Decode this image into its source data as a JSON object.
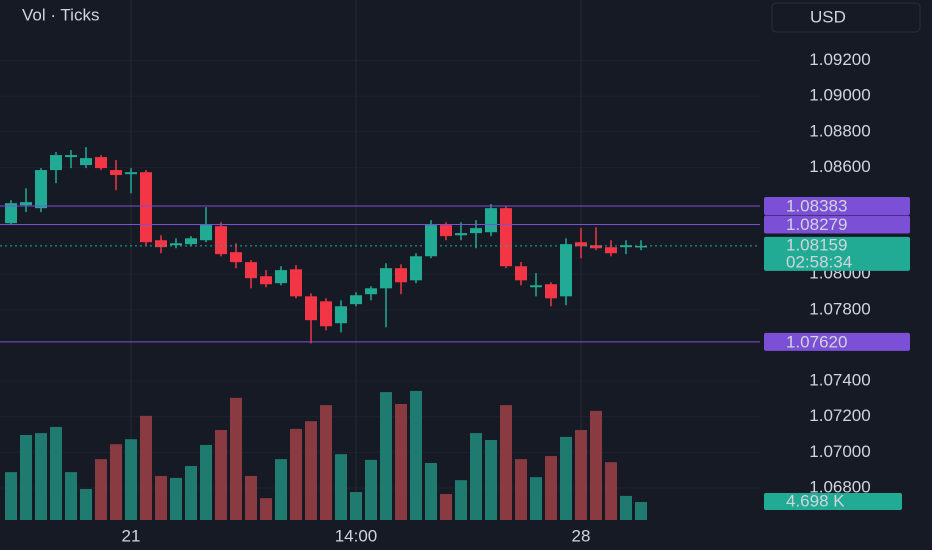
{
  "chart_data": {
    "type": "candlestick",
    "title": "Vol · Ticks",
    "currency": "USD",
    "categories": [
      null,
      null,
      null,
      null,
      null,
      null,
      null,
      null,
      "21",
      null,
      null,
      null,
      null,
      null,
      null,
      null,
      null,
      null,
      null,
      null,
      null,
      null,
      null,
      "14:00",
      null,
      null,
      null,
      null,
      null,
      null,
      null,
      null,
      null,
      null,
      null,
      null,
      null,
      null,
      "28",
      null,
      null,
      null,
      null
    ],
    "ohlc": {
      "open": [
        1.08287,
        1.08388,
        1.08371,
        1.08585,
        1.08658,
        1.08613,
        1.08658,
        1.08585,
        1.08562,
        1.08573,
        1.08191,
        1.08163,
        1.08169,
        1.08191,
        1.0827,
        1.08124,
        1.08068,
        1.07989,
        1.0795,
        1.08028,
        1.07876,
        1.07848,
        1.07725,
        1.07832,
        1.07888,
        1.07921,
        1.08034,
        1.07966,
        1.08101,
        1.08276,
        1.08219,
        1.08231,
        1.08236,
        1.08371,
        1.08045,
        1.07927,
        1.07944,
        1.07876,
        1.0818,
        1.08163,
        1.08152,
        1.08152,
        1.08152
      ],
      "high": [
        1.08416,
        1.08483,
        1.08596,
        1.08686,
        1.08697,
        1.08714,
        1.08669,
        1.08641,
        1.08596,
        1.08585,
        1.08219,
        1.08202,
        1.08214,
        1.08377,
        1.08292,
        1.08174,
        1.08079,
        1.08023,
        1.08045,
        1.08051,
        1.07893,
        1.07865,
        1.07854,
        1.07899,
        1.07933,
        1.08062,
        1.08056,
        1.08118,
        1.08304,
        1.08292,
        1.08292,
        1.08304,
        1.08394,
        1.08382,
        1.08068,
        1.08006,
        1.07955,
        1.08202,
        1.08259,
        1.08264,
        1.08191,
        1.08191,
        1.08191
      ],
      "low": [
        1.08276,
        1.08349,
        1.08349,
        1.08512,
        1.08596,
        1.08596,
        1.08585,
        1.08472,
        1.08455,
        1.08163,
        1.08118,
        1.08146,
        1.08157,
        1.0818,
        1.08101,
        1.08034,
        1.07921,
        1.07927,
        1.07938,
        1.07865,
        1.07612,
        1.07685,
        1.07674,
        1.0782,
        1.07854,
        1.07702,
        1.07888,
        1.0795,
        1.0809,
        1.08191,
        1.08191,
        1.08146,
        1.08214,
        1.08034,
        1.07938,
        1.07876,
        1.0782,
        1.07826,
        1.0809,
        1.08135,
        1.08101,
        1.08113,
        1.08135
      ],
      "close": [
        1.08399,
        1.08405,
        1.08585,
        1.08669,
        1.08669,
        1.08652,
        1.08596,
        1.08557,
        1.08573,
        1.0818,
        1.08152,
        1.08174,
        1.08202,
        1.08276,
        1.08113,
        1.08068,
        1.07978,
        1.07944,
        1.08023,
        1.07876,
        1.07742,
        1.07708,
        1.0782,
        1.07882,
        1.07921,
        1.08034,
        1.07955,
        1.08101,
        1.08276,
        1.08214,
        1.08231,
        1.08259,
        1.08371,
        1.08045,
        1.07966,
        1.07938,
        1.07865,
        1.08169,
        1.08157,
        1.08146,
        1.08118,
        1.08163,
        1.08159
      ]
    },
    "up_color": "#22ab94",
    "down_color": "#f23645",
    "ylim": [
      1.0662,
      1.0954
    ],
    "yticks": [
      {
        "value": 1.092,
        "label": "1.09200"
      },
      {
        "value": 1.09,
        "label": "1.09000"
      },
      {
        "value": 1.088,
        "label": "1.08800"
      },
      {
        "value": 1.086,
        "label": "1.08600"
      },
      {
        "value": 1.08,
        "label": "1.08000"
      },
      {
        "value": 1.078,
        "label": "1.07800"
      },
      {
        "value": 1.074,
        "label": "1.07400"
      },
      {
        "value": 1.072,
        "label": "1.07200"
      },
      {
        "value": 1.07,
        "label": "1.07000"
      },
      {
        "value": 1.068,
        "label": "1.06800"
      }
    ],
    "price_lines": [
      {
        "value": 1.08383,
        "label": "1.08383"
      },
      {
        "value": 1.08279,
        "label": "1.08279"
      },
      {
        "value": 1.0762,
        "label": "1.07620"
      }
    ],
    "price_line_color": "#7b4fd6",
    "last_price": {
      "value": 1.08159,
      "label": "1.08159",
      "countdown": "02:58:34"
    },
    "volume": {
      "values": [
        12.5,
        22.2,
        22.7,
        24.3,
        12.5,
        8.1,
        15.9,
        19.8,
        21.1,
        27.2,
        11.5,
        11.0,
        14.1,
        19.6,
        23.5,
        31.9,
        11.5,
        5.7,
        15.9,
        23.8,
        25.8,
        30.0,
        17.2,
        7.3,
        15.7,
        33.4,
        30.3,
        33.7,
        14.9,
        6.8,
        10.4,
        22.7,
        20.9,
        30.0,
        15.9,
        11.2,
        16.7,
        21.7,
        23.5,
        28.5,
        15.1,
        6.3,
        4.698
      ],
      "ylim": [
        0,
        135.8
      ],
      "last_label": "4.698 K",
      "up_color": "#1f7a70",
      "down_color": "#8a3a41"
    }
  }
}
